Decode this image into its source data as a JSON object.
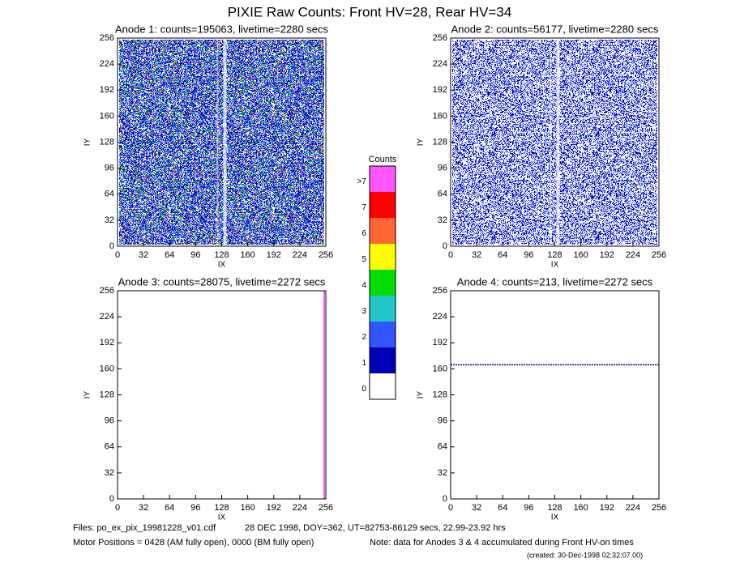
{
  "title": "PIXIE Raw Counts:  Front HV=28, Rear HV=34",
  "chart_data": [
    {
      "type": "heatmap",
      "title": "Anode 1: counts=195063, livetime=2280 secs",
      "xlabel": "IX",
      "ylabel": "IY",
      "xlim": [
        0,
        256
      ],
      "ylim": [
        0,
        256
      ],
      "xticks": [
        0,
        32,
        64,
        96,
        128,
        160,
        192,
        224,
        256
      ],
      "yticks": [
        0,
        32,
        64,
        96,
        128,
        160,
        192,
        224,
        256
      ]
    },
    {
      "type": "heatmap",
      "title": "Anode 2: counts=56177, livetime=2280 secs",
      "xlabel": "IX",
      "ylabel": "IY",
      "xlim": [
        0,
        256
      ],
      "ylim": [
        0,
        256
      ],
      "xticks": [
        0,
        32,
        64,
        96,
        128,
        160,
        192,
        224,
        256
      ],
      "yticks": [
        0,
        32,
        64,
        96,
        128,
        160,
        192,
        224,
        256
      ]
    },
    {
      "type": "heatmap",
      "title": "Anode 3: counts=28075, livetime=2272 secs",
      "xlabel": "IX",
      "ylabel": "IY",
      "xlim": [
        0,
        256
      ],
      "ylim": [
        0,
        256
      ],
      "xticks": [
        0,
        32,
        64,
        96,
        128,
        160,
        192,
        224,
        256
      ],
      "yticks": [
        0,
        32,
        64,
        96,
        128,
        160,
        192,
        224,
        256
      ]
    },
    {
      "type": "heatmap",
      "title": "Anode 4: counts=213, livetime=2272 secs",
      "xlabel": "IX",
      "ylabel": "IY",
      "xlim": [
        0,
        256
      ],
      "ylim": [
        0,
        256
      ],
      "xticks": [
        0,
        32,
        64,
        96,
        128,
        160,
        192,
        224,
        256
      ],
      "yticks": [
        0,
        32,
        64,
        96,
        128,
        160,
        192,
        224,
        256
      ]
    }
  ],
  "colorbar": {
    "title": "Counts",
    "labels": [
      "0",
      "1",
      "2",
      "3",
      "4",
      "5",
      "6",
      "7",
      ">7"
    ],
    "colors": [
      "#ffffff",
      "#0000b4",
      "#3355ff",
      "#22c8c8",
      "#00dd00",
      "#ffff00",
      "#ff6633",
      "#ff0000",
      "#ff55ff"
    ]
  },
  "footer": {
    "files": "Files: po_ex_pix_19981228_v01.cdf",
    "date": "28 DEC 1998, DOY=362, UT=82753-86129 secs, 22.99-23.92 hrs",
    "motor": "Motor Positions = 0428 (AM fully open), 0000 (BM fully open)",
    "note": "Note: data for Anodes 3 & 4 accumulated during Front HV-on times",
    "created": "(created: 30-Dec-1998 02:32:07.00)"
  }
}
